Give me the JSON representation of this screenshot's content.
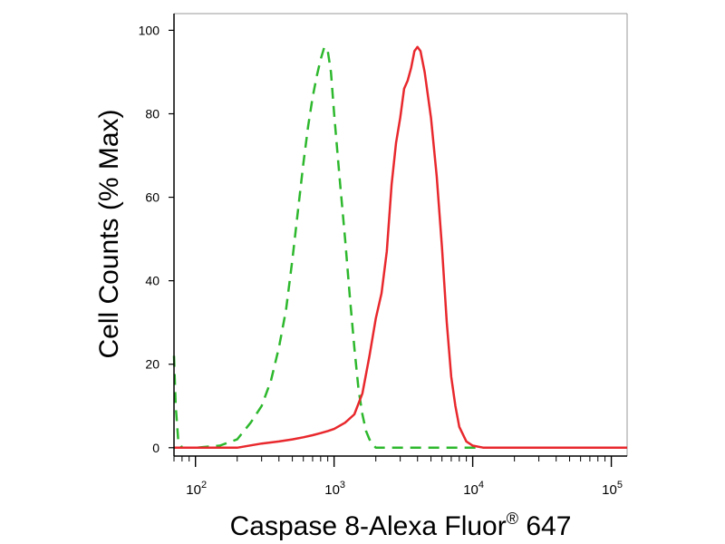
{
  "chart_data": {
    "type": "line",
    "xlabel": "Caspase 8-Alexa Fluor",
    "xlabel_superscript": "®",
    "xlabel_suffix": " 647",
    "ylabel": "Cell Counts (% Max)",
    "xscale": "log",
    "xlim": [
      70,
      130000
    ],
    "ylim": [
      -2,
      104
    ],
    "y_ticks": [
      {
        "value": 0,
        "label": "0"
      },
      {
        "value": 20,
        "label": "20"
      },
      {
        "value": 40,
        "label": "40"
      },
      {
        "value": 60,
        "label": "60"
      },
      {
        "value": 80,
        "label": "80"
      },
      {
        "value": 100,
        "label": "100"
      }
    ],
    "x_ticks": [
      {
        "value": 100,
        "base": "10",
        "exp": "2"
      },
      {
        "value": 1000,
        "base": "10",
        "exp": "3"
      },
      {
        "value": 10000,
        "base": "10",
        "exp": "4"
      },
      {
        "value": 100000,
        "base": "10",
        "exp": "5"
      }
    ],
    "grid": false,
    "series": [
      {
        "color": "#2db82d",
        "style": "dashed",
        "x": [
          70,
          72,
          75,
          80,
          100,
          150,
          200,
          250,
          300,
          350,
          400,
          450,
          500,
          550,
          600,
          650,
          700,
          750,
          800,
          850,
          900,
          950,
          1000,
          1100,
          1200,
          1300,
          1400,
          1500,
          1600,
          1700,
          1800,
          1900,
          2000,
          2500,
          5000,
          100000,
          130000
        ],
        "y": [
          22,
          10,
          2,
          0,
          0,
          0.5,
          2,
          6,
          10,
          16,
          24,
          33,
          45,
          57,
          68,
          77,
          84,
          89,
          93,
          96,
          95,
          90,
          80,
          64,
          50,
          36,
          24,
          14,
          8,
          4,
          2,
          0.8,
          0,
          0,
          0,
          0,
          0
        ]
      },
      {
        "color": "#e8282d",
        "style": "solid",
        "x": [
          70,
          100,
          200,
          300,
          400,
          500,
          600,
          700,
          800,
          900,
          1000,
          1200,
          1400,
          1600,
          1800,
          2000,
          2200,
          2400,
          2600,
          2800,
          3000,
          3200,
          3400,
          3600,
          3800,
          4000,
          4200,
          4500,
          5000,
          5500,
          6000,
          6500,
          7000,
          7500,
          8000,
          9000,
          10000,
          12000,
          15000,
          100000,
          130000
        ],
        "y": [
          0,
          0,
          0,
          1,
          1.5,
          2,
          2.5,
          3,
          3.5,
          4,
          4.5,
          6,
          8,
          13,
          22,
          31,
          37,
          47,
          63,
          73,
          79,
          86,
          88,
          91,
          95,
          96,
          95,
          90,
          79,
          65,
          48,
          30,
          17,
          10,
          5,
          1.5,
          0.5,
          0,
          0,
          0,
          0
        ]
      }
    ]
  }
}
